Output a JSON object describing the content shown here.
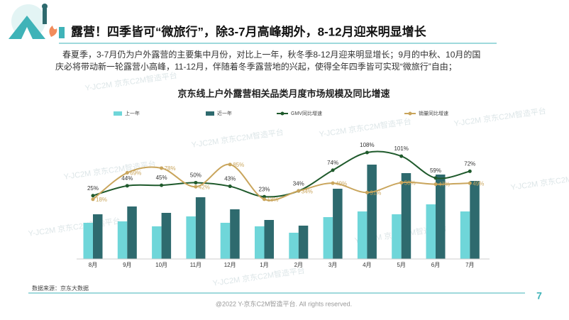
{
  "header": {
    "title": "露营！四季皆可“微旅行”，除3-7月高峰期外，8-12月迎来明显增长",
    "paragraph": [
      "春夏季，3-7月仍为户外露营的主要集中月份，对比上一年，秋冬季8-12月迎来明显增长；9月的中秋、10月的国",
      "庆必将带动新一轮露营小高峰，11-12月，伴随着冬季露营地的兴起，使得全年四季皆可实现“微旅行”自由；"
    ]
  },
  "watermark": "Y-JC2M 京东C2M智造平台",
  "chart_data": {
    "type": "bar-line",
    "title": "京东线上户外露营相关品类月度市场规模及同比增速",
    "categories": [
      "8月",
      "9月",
      "10月",
      "11月",
      "12月",
      "1月",
      "2月",
      "3月",
      "4月",
      "5月",
      "6月",
      "7月"
    ],
    "ylim": [
      0,
      150
    ],
    "y2lim": [
      -97,
      108
    ],
    "series": [
      {
        "name": "上一年",
        "color": "#6fd6d9",
        "values": [
          51,
          53,
          46,
          60,
          51,
          46,
          37,
          59,
          67,
          63,
          77,
          67
        ]
      },
      {
        "name": "近一年",
        "color": "#2e6a6e",
        "values": [
          63,
          74,
          65,
          87,
          70,
          55,
          47,
          99,
          133,
          121,
          119,
          110
        ]
      },
      {
        "name": "GMV同比增速",
        "color": "#1f5a2c",
        "axis": "y2",
        "values": [
          25,
          44,
          45,
          50,
          43,
          23,
          34,
          74,
          108,
          101,
          59,
          72
        ],
        "value_labels": [
          "25%",
          "44%",
          "45%",
          "50%",
          "43%",
          "23%",
          "34%",
          "74%",
          "108%",
          "101%",
          "59%",
          "72%"
        ]
      },
      {
        "name": "销量同比增速",
        "color": "#c9a55c",
        "axis": "y2",
        "values": [
          18,
          69,
          78,
          42,
          85,
          18,
          34,
          49,
          31,
          50,
          47,
          49
        ],
        "value_labels": [
          "18%",
          "69%",
          "78%",
          "42%",
          "85%",
          "18%",
          "34%",
          "49%",
          "31%",
          "50%",
          "47%",
          "49%"
        ]
      }
    ],
    "source": "数据来源：京东大数据"
  },
  "footer": {
    "copyright": "@2022 Y-京东C2M智造平台. All rights reserved.",
    "page": "7"
  }
}
